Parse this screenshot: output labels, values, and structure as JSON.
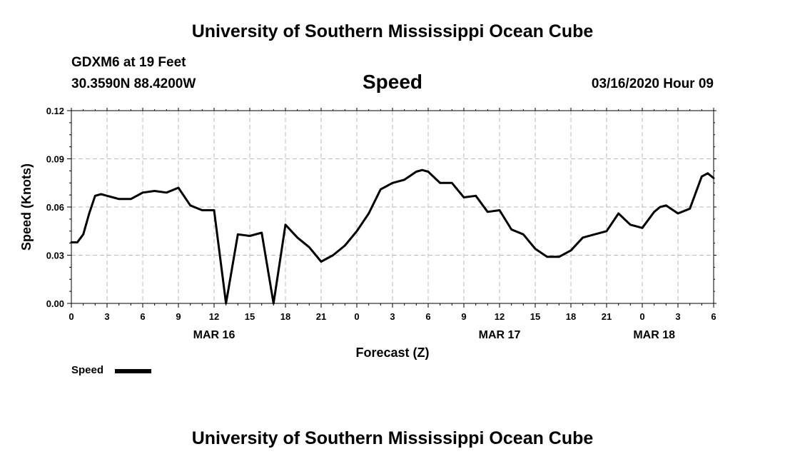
{
  "header": {
    "title": "University of Southern Mississippi Ocean Cube",
    "station": "GDXM6 at 19 Feet",
    "coordinates": "30.3590N 88.4200W",
    "datetime": "03/16/2020 Hour 09"
  },
  "footer": {
    "title": "University of Southern Mississippi Ocean Cube"
  },
  "legend": {
    "label": "Speed",
    "color": "#000000"
  },
  "chart_data": {
    "type": "line",
    "title": "Speed",
    "xlabel": "Forecast (Z)",
    "ylabel": "Speed (Knots)",
    "xlim": [
      0,
      54
    ],
    "ylim": [
      0,
      0.12
    ],
    "grid": true,
    "legend_position": "bottom-left",
    "x_ticks": [
      {
        "x": 0,
        "label": "0"
      },
      {
        "x": 3,
        "label": "3"
      },
      {
        "x": 6,
        "label": "6"
      },
      {
        "x": 9,
        "label": "9"
      },
      {
        "x": 12,
        "label": "12"
      },
      {
        "x": 15,
        "label": "15"
      },
      {
        "x": 18,
        "label": "18"
      },
      {
        "x": 21,
        "label": "21"
      },
      {
        "x": 24,
        "label": "0"
      },
      {
        "x": 27,
        "label": "3"
      },
      {
        "x": 30,
        "label": "6"
      },
      {
        "x": 33,
        "label": "9"
      },
      {
        "x": 36,
        "label": "12"
      },
      {
        "x": 39,
        "label": "15"
      },
      {
        "x": 42,
        "label": "18"
      },
      {
        "x": 45,
        "label": "21"
      },
      {
        "x": 48,
        "label": "0"
      },
      {
        "x": 51,
        "label": "3"
      },
      {
        "x": 54,
        "label": "6"
      }
    ],
    "y_ticks": [
      {
        "y": 0,
        "label": "0.00"
      },
      {
        "y": 0.03,
        "label": "0.03"
      },
      {
        "y": 0.06,
        "label": "0.06"
      },
      {
        "y": 0.09,
        "label": "0.09"
      },
      {
        "y": 0.12,
        "label": "0.12"
      }
    ],
    "date_labels": [
      {
        "x": 12,
        "label": "MAR 16"
      },
      {
        "x": 36,
        "label": "MAR 17"
      },
      {
        "x": 49,
        "label": "MAR 18"
      }
    ],
    "series": [
      {
        "name": "Speed",
        "color": "#000000",
        "x": [
          0,
          0.5,
          1,
          1.5,
          2,
          2.5,
          3,
          3.5,
          4,
          5,
          5.5,
          6,
          7,
          8,
          9,
          10,
          11,
          12,
          13,
          14,
          15,
          16,
          17,
          18,
          19,
          20,
          21,
          22,
          23,
          24,
          25,
          26,
          27,
          28,
          29,
          29.5,
          30,
          31,
          32,
          33,
          34,
          35,
          36,
          37,
          38,
          39,
          40,
          41,
          42,
          43,
          44,
          45,
          46,
          47,
          48,
          49,
          49.5,
          50,
          51,
          52,
          53,
          53.5,
          54
        ],
        "y": [
          0.038,
          0.038,
          0.043,
          0.056,
          0.067,
          0.068,
          0.067,
          0.066,
          0.065,
          0.065,
          0.067,
          0.069,
          0.07,
          0.069,
          0.072,
          0.061,
          0.058,
          0.058,
          0.0,
          0.043,
          0.042,
          0.044,
          0.0,
          0.049,
          0.041,
          0.035,
          0.026,
          0.03,
          0.036,
          0.045,
          0.056,
          0.071,
          0.075,
          0.077,
          0.082,
          0.083,
          0.082,
          0.075,
          0.075,
          0.066,
          0.067,
          0.057,
          0.058,
          0.046,
          0.043,
          0.034,
          0.029,
          0.029,
          0.033,
          0.041,
          0.043,
          0.045,
          0.056,
          0.049,
          0.047,
          0.057,
          0.06,
          0.061,
          0.056,
          0.059,
          0.079,
          0.081,
          0.078
        ]
      }
    ]
  }
}
